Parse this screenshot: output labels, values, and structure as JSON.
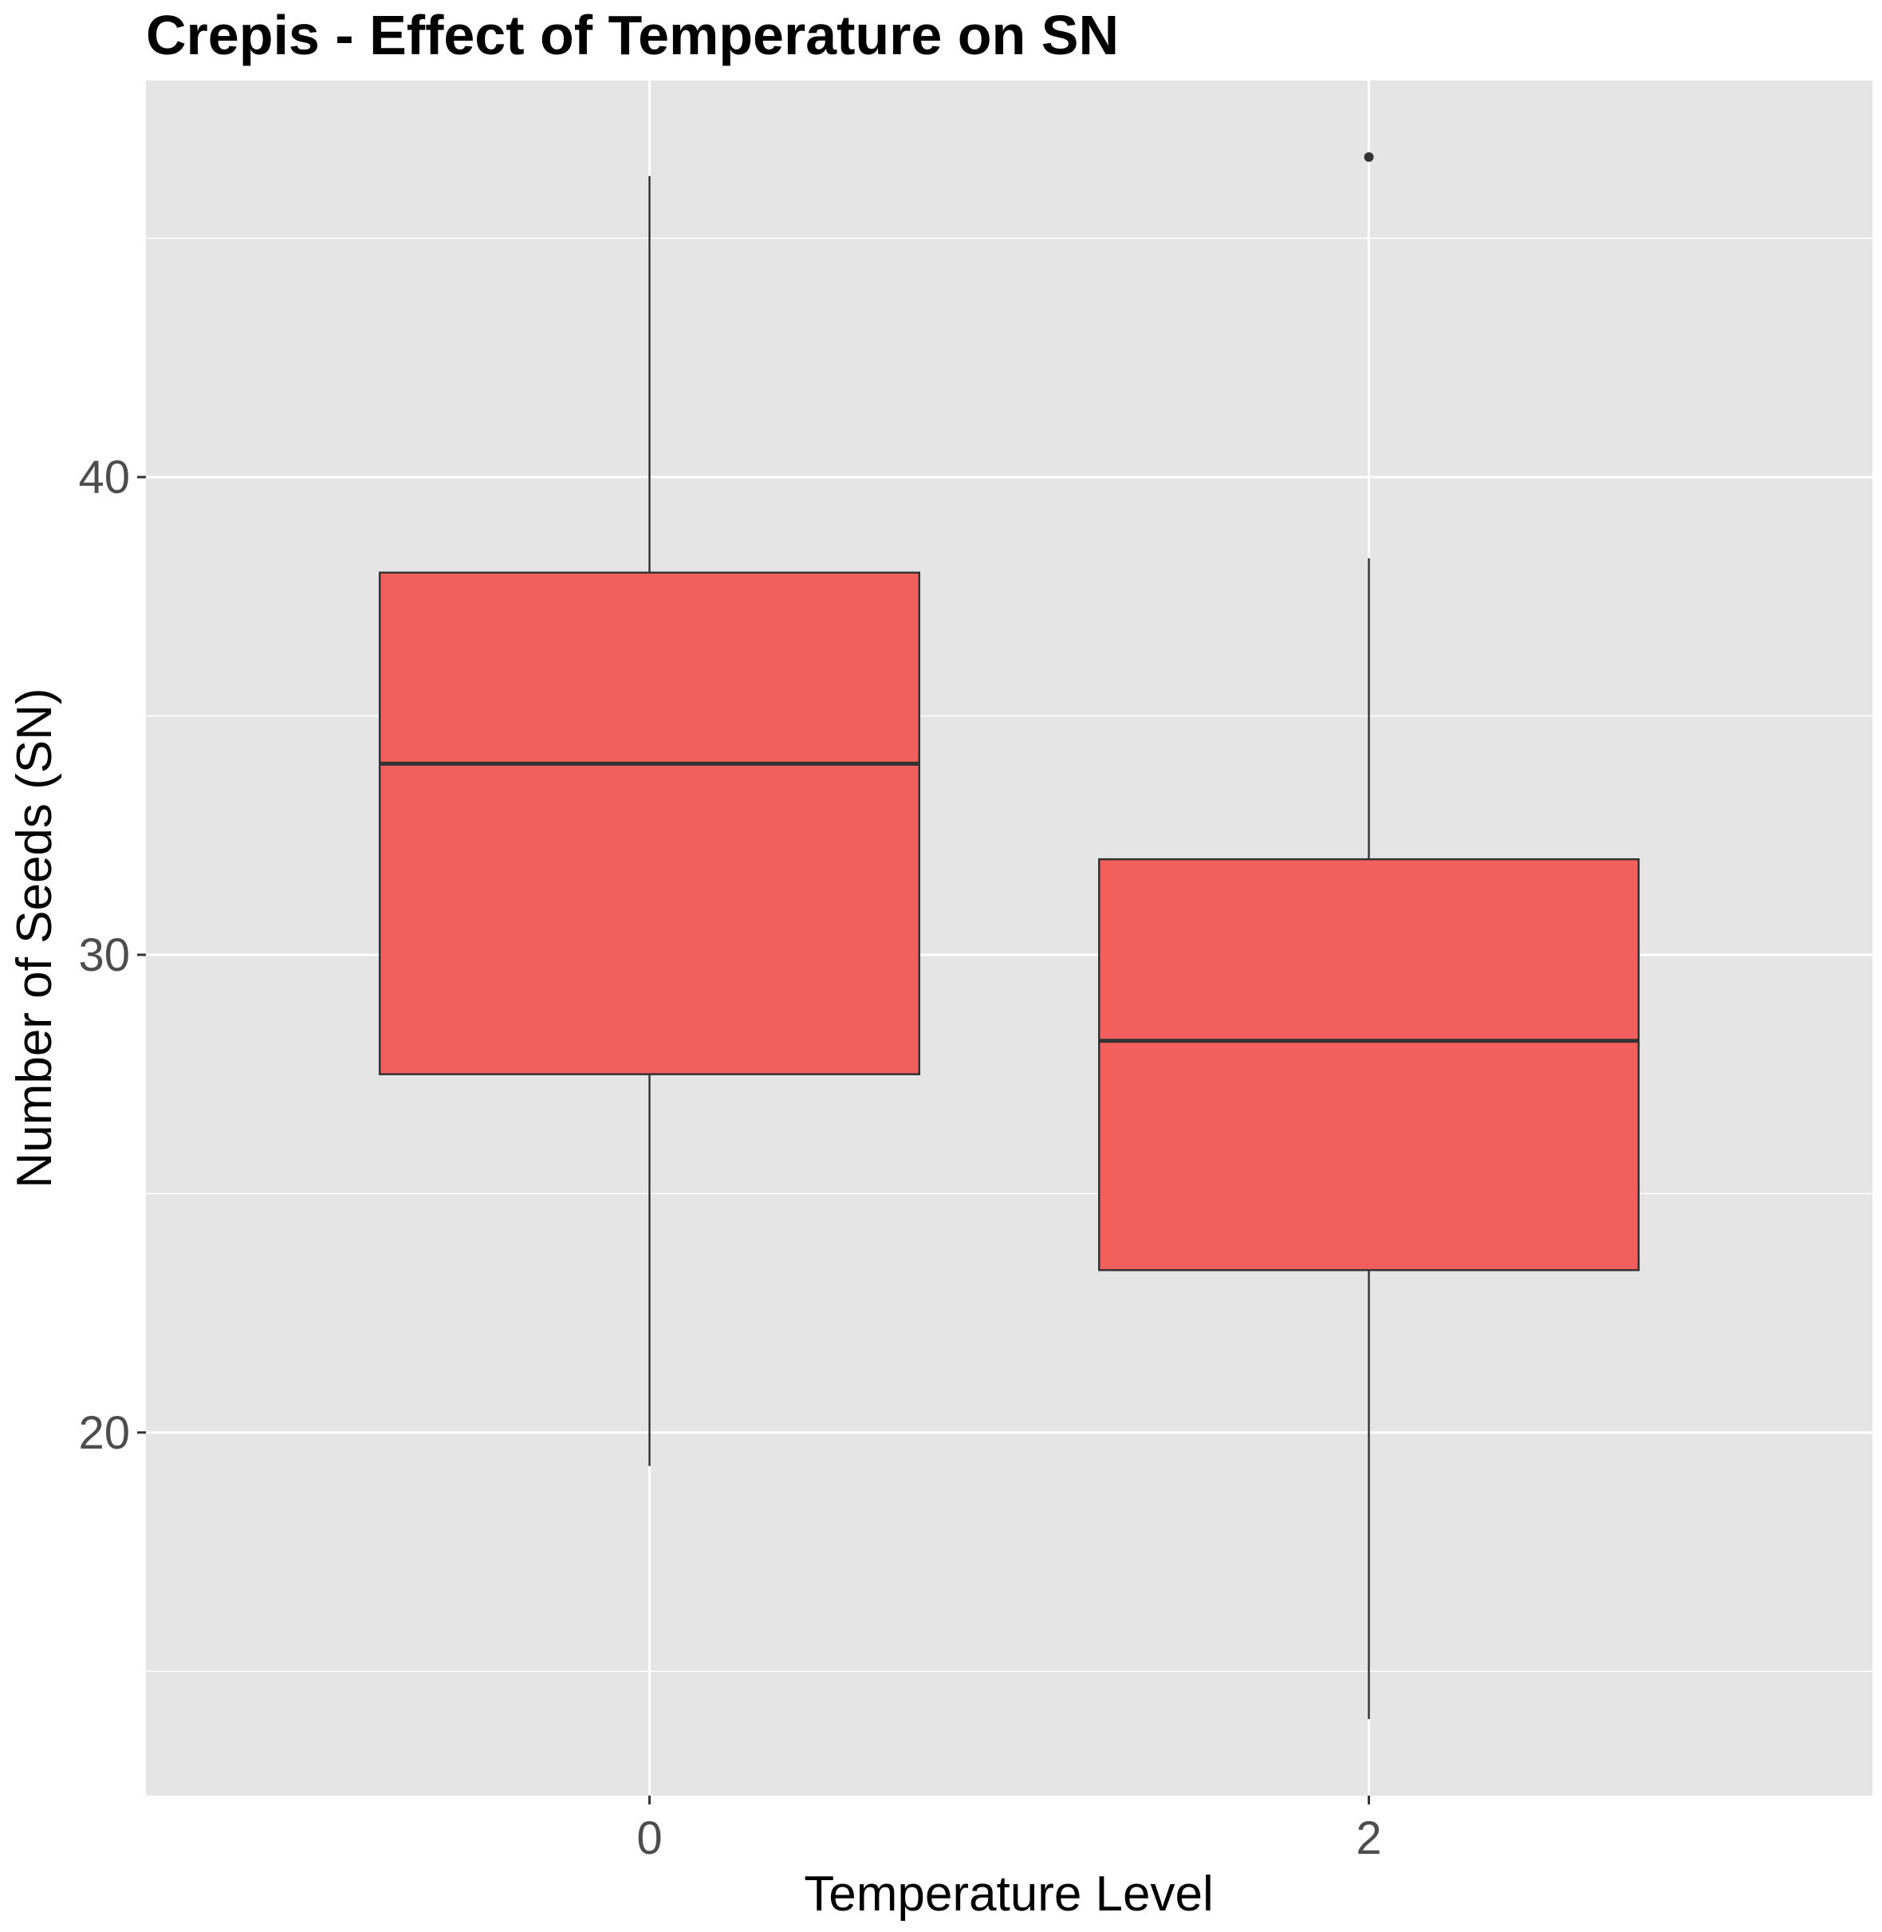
{
  "chart_data": {
    "type": "boxplot",
    "title": "Crepis - Effect of Temperature on SN",
    "xlabel": "Temperature Level",
    "ylabel": "Number of Seeds (SN)",
    "categories": [
      "0",
      "2"
    ],
    "ylim": [
      12.4,
      48.3
    ],
    "y_ticks": [
      20,
      30,
      40
    ],
    "grid": true,
    "legend": "none",
    "fill_color": "#F1605D",
    "panel_color": "#E5E5E5",
    "boxes": [
      {
        "category": "0",
        "whisker_low": 19.3,
        "q1": 27.5,
        "median": 34.0,
        "q3": 38.0,
        "whisker_high": 46.3,
        "outliers": []
      },
      {
        "category": "2",
        "whisker_low": 14.0,
        "q1": 23.4,
        "median": 28.2,
        "q3": 32.0,
        "whisker_high": 38.3,
        "outliers": [
          46.7
        ]
      }
    ]
  }
}
